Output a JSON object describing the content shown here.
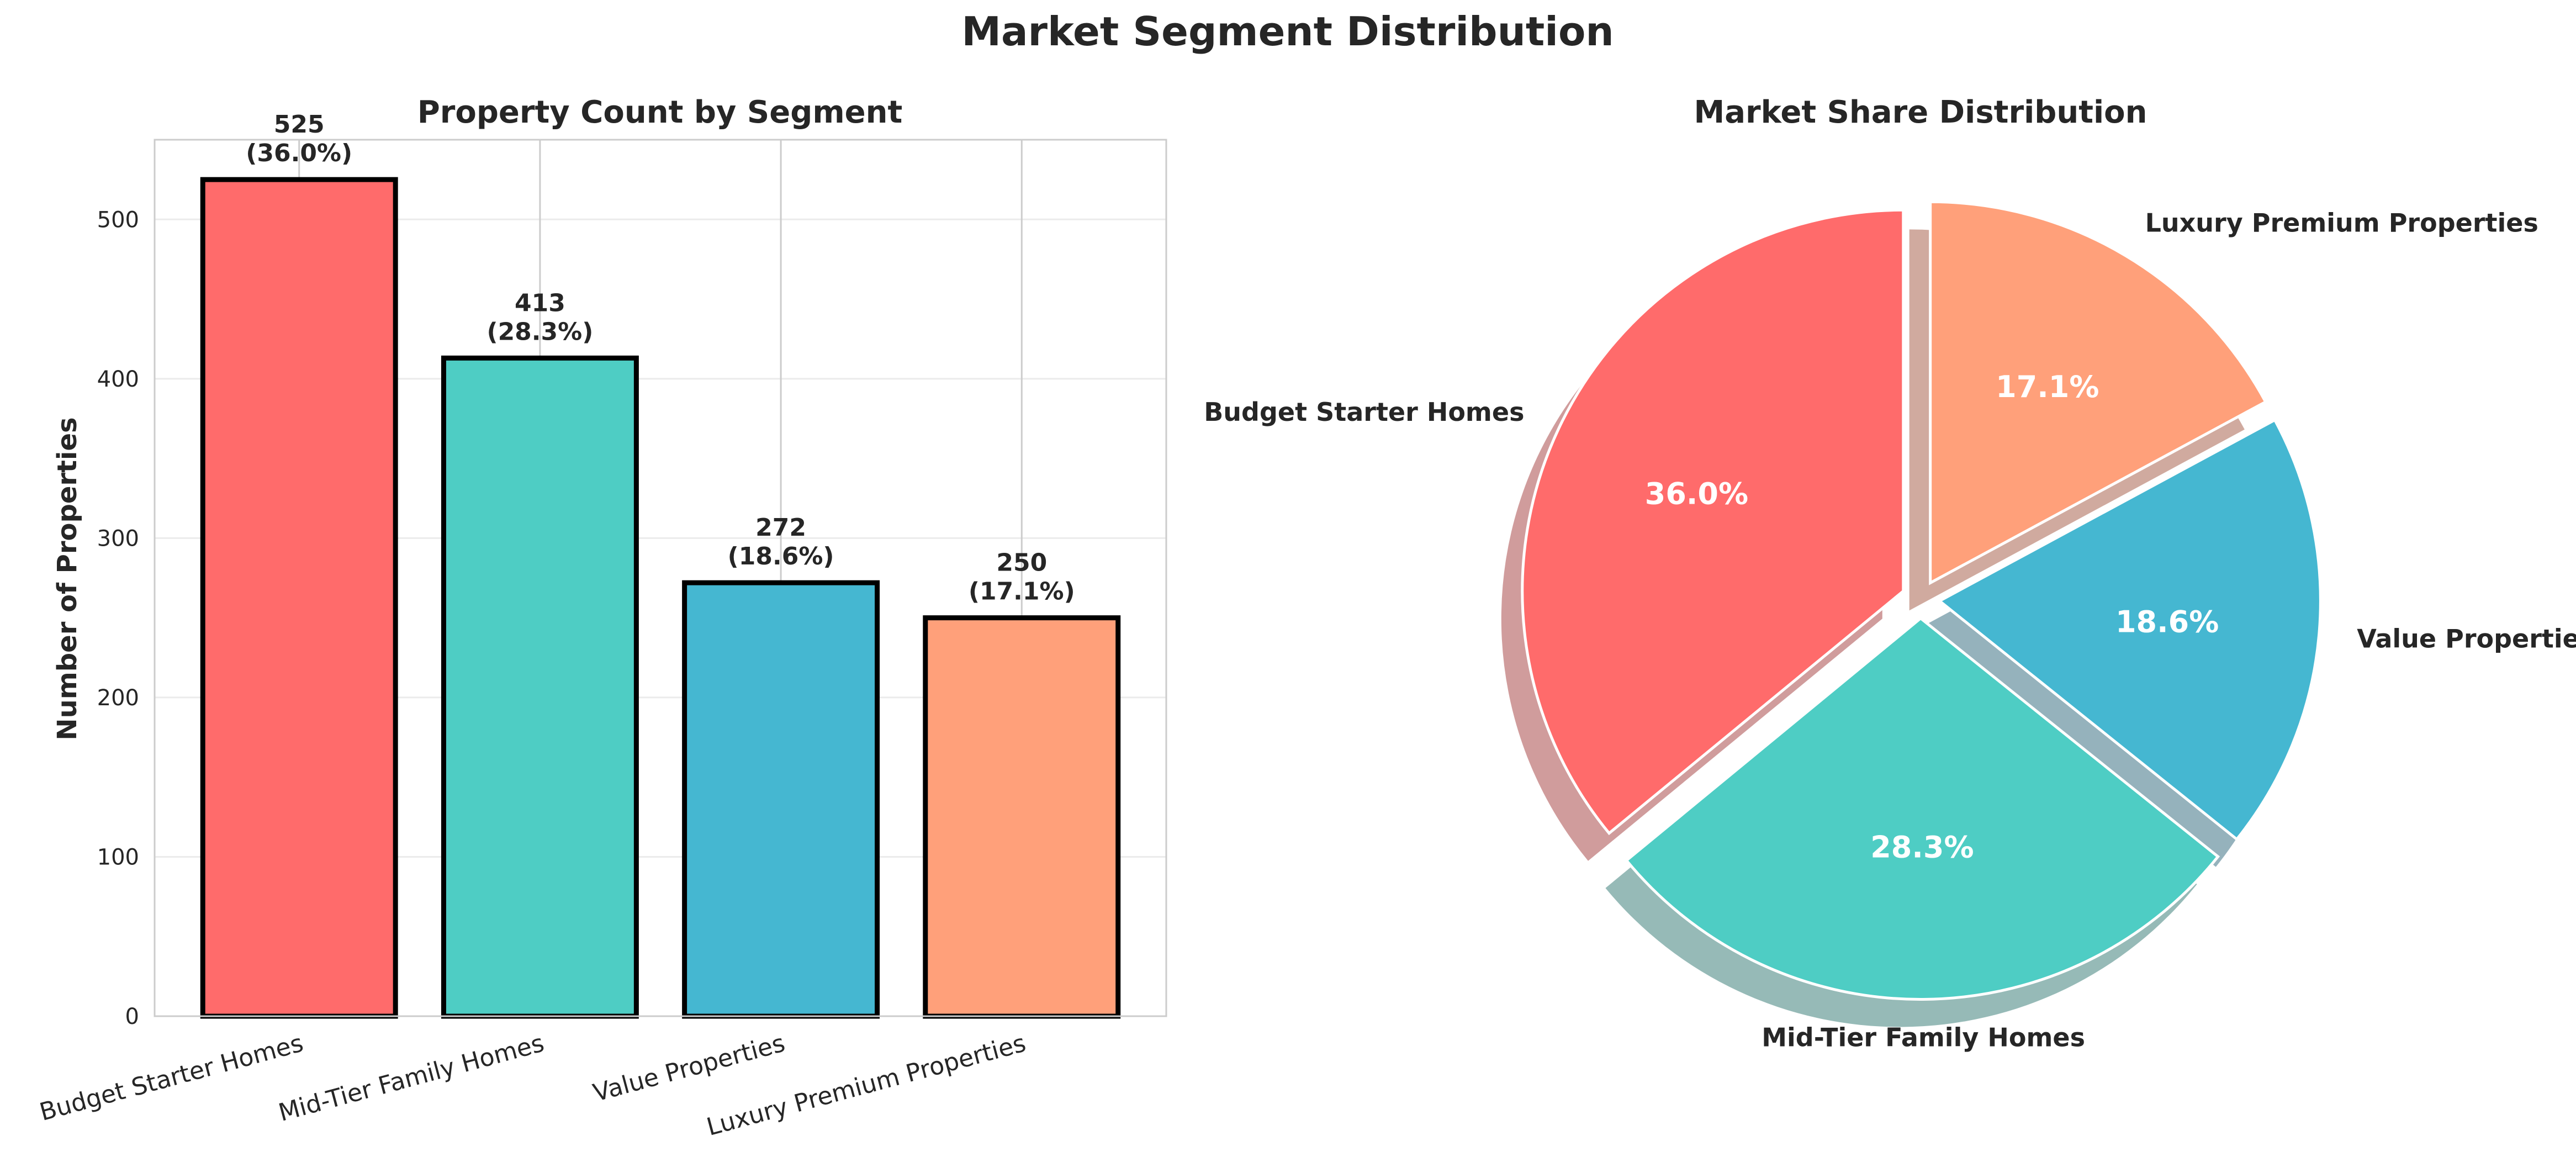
{
  "figure": {
    "title": "Market Segment Distribution"
  },
  "chart_data": [
    {
      "type": "bar",
      "title": "Property Count by Segment",
      "xlabel": "",
      "ylabel": "Number of Properties",
      "categories": [
        "Budget Starter Homes",
        "Mid-Tier Family Homes",
        "Value Properties",
        "Luxury Premium Properties"
      ],
      "values": [
        525,
        413,
        272,
        250
      ],
      "value_labels": [
        "525",
        "413",
        "272",
        "250"
      ],
      "percent_labels": [
        "(36.0%)",
        "(28.3%)",
        "(18.6%)",
        "(17.1%)"
      ],
      "colors": [
        "#FF6B6B",
        "#4ECDC4",
        "#45B7D1",
        "#FFA07A"
      ],
      "edge_color": "#000000",
      "ylim": [
        0,
        550
      ],
      "yticks": [
        0,
        100,
        200,
        300,
        400,
        500
      ],
      "ytick_labels": [
        "0",
        "100",
        "200",
        "300",
        "400",
        "500"
      ],
      "grid": true
    },
    {
      "type": "pie",
      "title": "Market Share Distribution",
      "labels": [
        "Budget Starter Homes",
        "Mid-Tier Family Homes",
        "Value Properties",
        "Luxury Premium Properties"
      ],
      "values": [
        525,
        413,
        272,
        250
      ],
      "percent_labels": [
        "36.0%",
        "28.3%",
        "18.6%",
        "17.1%"
      ],
      "colors": [
        "#FF6B6B",
        "#4ECDC4",
        "#45B7D1",
        "#FFA07A"
      ],
      "start_angle_deg": 90,
      "direction": "counterclockwise",
      "explode": [
        0.05,
        0.05,
        0.05,
        0.05
      ],
      "shadow": true
    }
  ]
}
